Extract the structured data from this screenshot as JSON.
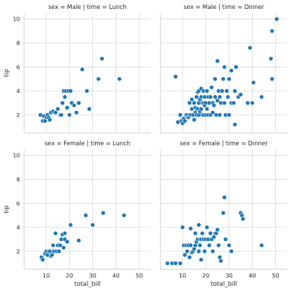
{
  "chart_data": {
    "type": "scatter",
    "facet_grid": {
      "rows": 2,
      "cols": 2,
      "sharex": true,
      "sharey": true
    },
    "xlabel": "total_bill",
    "ylabel": "tip",
    "xlim": [
      0.5,
      55
    ],
    "ylim": [
      0.5,
      10.5
    ],
    "xticks": [
      10,
      20,
      30,
      40,
      50
    ],
    "yticks": [
      2,
      4,
      6,
      8,
      10
    ],
    "grid": true,
    "marker_color": "#1f77b4",
    "panels": [
      {
        "title": "sex = Male | time = Lunch",
        "points": [
          [
            7.5,
            2.0
          ],
          [
            8.5,
            1.5
          ],
          [
            9.0,
            1.9
          ],
          [
            9.5,
            1.5
          ],
          [
            10.0,
            1.8
          ],
          [
            10.5,
            2.0
          ],
          [
            11.0,
            1.8
          ],
          [
            11.5,
            1.6
          ],
          [
            12.0,
            2.2
          ],
          [
            13.0,
            2.3
          ],
          [
            14.0,
            2.2
          ],
          [
            15.0,
            2.5
          ],
          [
            16.0,
            2.0
          ],
          [
            16.5,
            2.0
          ],
          [
            17.0,
            3.0
          ],
          [
            17.5,
            4.0
          ],
          [
            18.0,
            3.5
          ],
          [
            18.5,
            4.0
          ],
          [
            19.0,
            2.6
          ],
          [
            19.5,
            4.0
          ],
          [
            20.0,
            2.0
          ],
          [
            20.5,
            4.0
          ],
          [
            21.0,
            3.0
          ],
          [
            22.0,
            2.8
          ],
          [
            23.0,
            2.2
          ],
          [
            24.0,
            3.0
          ],
          [
            25.5,
            5.8
          ],
          [
            27.5,
            4.0
          ],
          [
            28.5,
            2.5
          ],
          [
            32.5,
            5.0
          ],
          [
            34.0,
            6.7
          ],
          [
            41.5,
            5.0
          ]
        ]
      },
      {
        "title": "sex = Male | time = Dinner",
        "points": [
          [
            7.0,
            5.2
          ],
          [
            8.0,
            1.4
          ],
          [
            9.0,
            2.0
          ],
          [
            9.5,
            1.5
          ],
          [
            10.0,
            1.3
          ],
          [
            10.5,
            1.7
          ],
          [
            11.0,
            1.5
          ],
          [
            11.5,
            2.0
          ],
          [
            12.0,
            2.0
          ],
          [
            12.5,
            1.8
          ],
          [
            13.0,
            2.0
          ],
          [
            13.0,
            3.0
          ],
          [
            13.5,
            2.0
          ],
          [
            14.0,
            2.5
          ],
          [
            14.0,
            3.3
          ],
          [
            14.5,
            2.0
          ],
          [
            15.0,
            1.6
          ],
          [
            15.0,
            3.0
          ],
          [
            15.5,
            2.2
          ],
          [
            15.5,
            2.6
          ],
          [
            16.0,
            2.0
          ],
          [
            16.0,
            3.5
          ],
          [
            16.5,
            2.5
          ],
          [
            16.5,
            3.9
          ],
          [
            17.0,
            2.0
          ],
          [
            17.0,
            3.0
          ],
          [
            17.0,
            4.0
          ],
          [
            17.5,
            2.3
          ],
          [
            17.5,
            3.3
          ],
          [
            18.0,
            2.5
          ],
          [
            18.0,
            3.5
          ],
          [
            18.0,
            4.2
          ],
          [
            18.5,
            2.0
          ],
          [
            18.5,
            3.0
          ],
          [
            19.0,
            2.0
          ],
          [
            19.0,
            3.0
          ],
          [
            19.0,
            4.0
          ],
          [
            19.5,
            2.8
          ],
          [
            19.5,
            3.5
          ],
          [
            20.0,
            2.0
          ],
          [
            20.0,
            3.0
          ],
          [
            20.5,
            2.5
          ],
          [
            20.5,
            4.0
          ],
          [
            21.0,
            3.5
          ],
          [
            21.0,
            2.0
          ],
          [
            21.5,
            3.0
          ],
          [
            22.0,
            2.0
          ],
          [
            22.0,
            3.5
          ],
          [
            22.5,
            4.3
          ],
          [
            23.0,
            3.0
          ],
          [
            23.0,
            2.2
          ],
          [
            23.5,
            2.8
          ],
          [
            24.0,
            3.5
          ],
          [
            24.0,
            5.0
          ],
          [
            24.5,
            2.0
          ],
          [
            25.0,
            3.2
          ],
          [
            25.0,
            6.5
          ],
          [
            25.5,
            4.0
          ],
          [
            26.0,
            2.0
          ],
          [
            26.0,
            3.5
          ],
          [
            26.5,
            3.0
          ],
          [
            27.0,
            4.0
          ],
          [
            27.5,
            5.0
          ],
          [
            28.0,
            3.0
          ],
          [
            28.0,
            6.0
          ],
          [
            28.5,
            2.0
          ],
          [
            29.0,
            4.0
          ],
          [
            29.5,
            3.5
          ],
          [
            30.0,
            2.0
          ],
          [
            30.0,
            5.0
          ],
          [
            31.0,
            3.0
          ],
          [
            31.0,
            5.7
          ],
          [
            32.0,
            3.0
          ],
          [
            32.5,
            4.0
          ],
          [
            32.5,
            1.2
          ],
          [
            33.0,
            6.0
          ],
          [
            34.0,
            3.5
          ],
          [
            35.0,
            3.7
          ],
          [
            38.0,
            3.0
          ],
          [
            39.0,
            7.6
          ],
          [
            40.0,
            3.0
          ],
          [
            40.5,
            4.7
          ],
          [
            44.0,
            3.5
          ],
          [
            48.0,
            6.7
          ],
          [
            48.5,
            5.0
          ],
          [
            48.5,
            9.0
          ],
          [
            50.5,
            10.0
          ]
        ]
      },
      {
        "title": "sex = Female | time = Lunch",
        "points": [
          [
            8.0,
            1.5
          ],
          [
            8.5,
            1.3
          ],
          [
            9.5,
            1.8
          ],
          [
            10.0,
            2.0
          ],
          [
            10.5,
            1.7
          ],
          [
            11.0,
            2.0
          ],
          [
            11.5,
            2.0
          ],
          [
            12.0,
            1.6
          ],
          [
            12.5,
            1.7
          ],
          [
            13.0,
            2.0
          ],
          [
            13.0,
            2.5
          ],
          [
            13.5,
            2.0
          ],
          [
            14.0,
            3.5
          ],
          [
            14.5,
            2.0
          ],
          [
            15.0,
            2.5
          ],
          [
            15.5,
            2.0
          ],
          [
            16.0,
            2.5
          ],
          [
            16.5,
            3.0
          ],
          [
            17.0,
            3.4
          ],
          [
            17.5,
            2.3
          ],
          [
            18.0,
            3.5
          ],
          [
            18.0,
            3.0
          ],
          [
            19.0,
            2.8
          ],
          [
            20.5,
            4.2
          ],
          [
            24.0,
            2.9
          ],
          [
            27.0,
            5.0
          ],
          [
            30.0,
            4.2
          ],
          [
            34.5,
            5.2
          ],
          [
            43.5,
            5.0
          ]
        ]
      },
      {
        "title": "sex = Female | time = Dinner",
        "points": [
          [
            3.5,
            1.0
          ],
          [
            5.5,
            1.0
          ],
          [
            7.0,
            1.0
          ],
          [
            9.0,
            1.0
          ],
          [
            10.0,
            4.0
          ],
          [
            10.5,
            2.5
          ],
          [
            11.0,
            1.7
          ],
          [
            11.5,
            2.5
          ],
          [
            12.0,
            2.0
          ],
          [
            12.5,
            2.5
          ],
          [
            13.0,
            1.5
          ],
          [
            13.5,
            2.5
          ],
          [
            13.5,
            3.9
          ],
          [
            14.0,
            1.9
          ],
          [
            14.5,
            2.0
          ],
          [
            15.0,
            2.2
          ],
          [
            15.5,
            2.5
          ],
          [
            15.5,
            3.5
          ],
          [
            16.0,
            2.8
          ],
          [
            16.5,
            3.0
          ],
          [
            17.0,
            2.0
          ],
          [
            17.0,
            4.2
          ],
          [
            17.5,
            2.5
          ],
          [
            17.5,
            3.0
          ],
          [
            18.0,
            3.0
          ],
          [
            18.0,
            1.3
          ],
          [
            18.5,
            3.5
          ],
          [
            19.0,
            3.0
          ],
          [
            19.5,
            2.0
          ],
          [
            20.0,
            3.0
          ],
          [
            20.5,
            4.0
          ],
          [
            21.0,
            3.0
          ],
          [
            21.5,
            2.5
          ],
          [
            22.0,
            3.5
          ],
          [
            22.5,
            3.0
          ],
          [
            23.0,
            2.0
          ],
          [
            23.5,
            3.2
          ],
          [
            24.0,
            3.5
          ],
          [
            24.5,
            3.5
          ],
          [
            25.0,
            3.8
          ],
          [
            25.5,
            2.5
          ],
          [
            26.0,
            1.5
          ],
          [
            26.5,
            1.2
          ],
          [
            27.5,
            5.2
          ],
          [
            28.0,
            6.5
          ],
          [
            28.5,
            3.0
          ],
          [
            30.0,
            2.5
          ],
          [
            31.0,
            2.0
          ],
          [
            35.0,
            5.2
          ],
          [
            35.5,
            5.0
          ],
          [
            36.0,
            4.7
          ],
          [
            44.0,
            2.5
          ]
        ]
      }
    ]
  }
}
